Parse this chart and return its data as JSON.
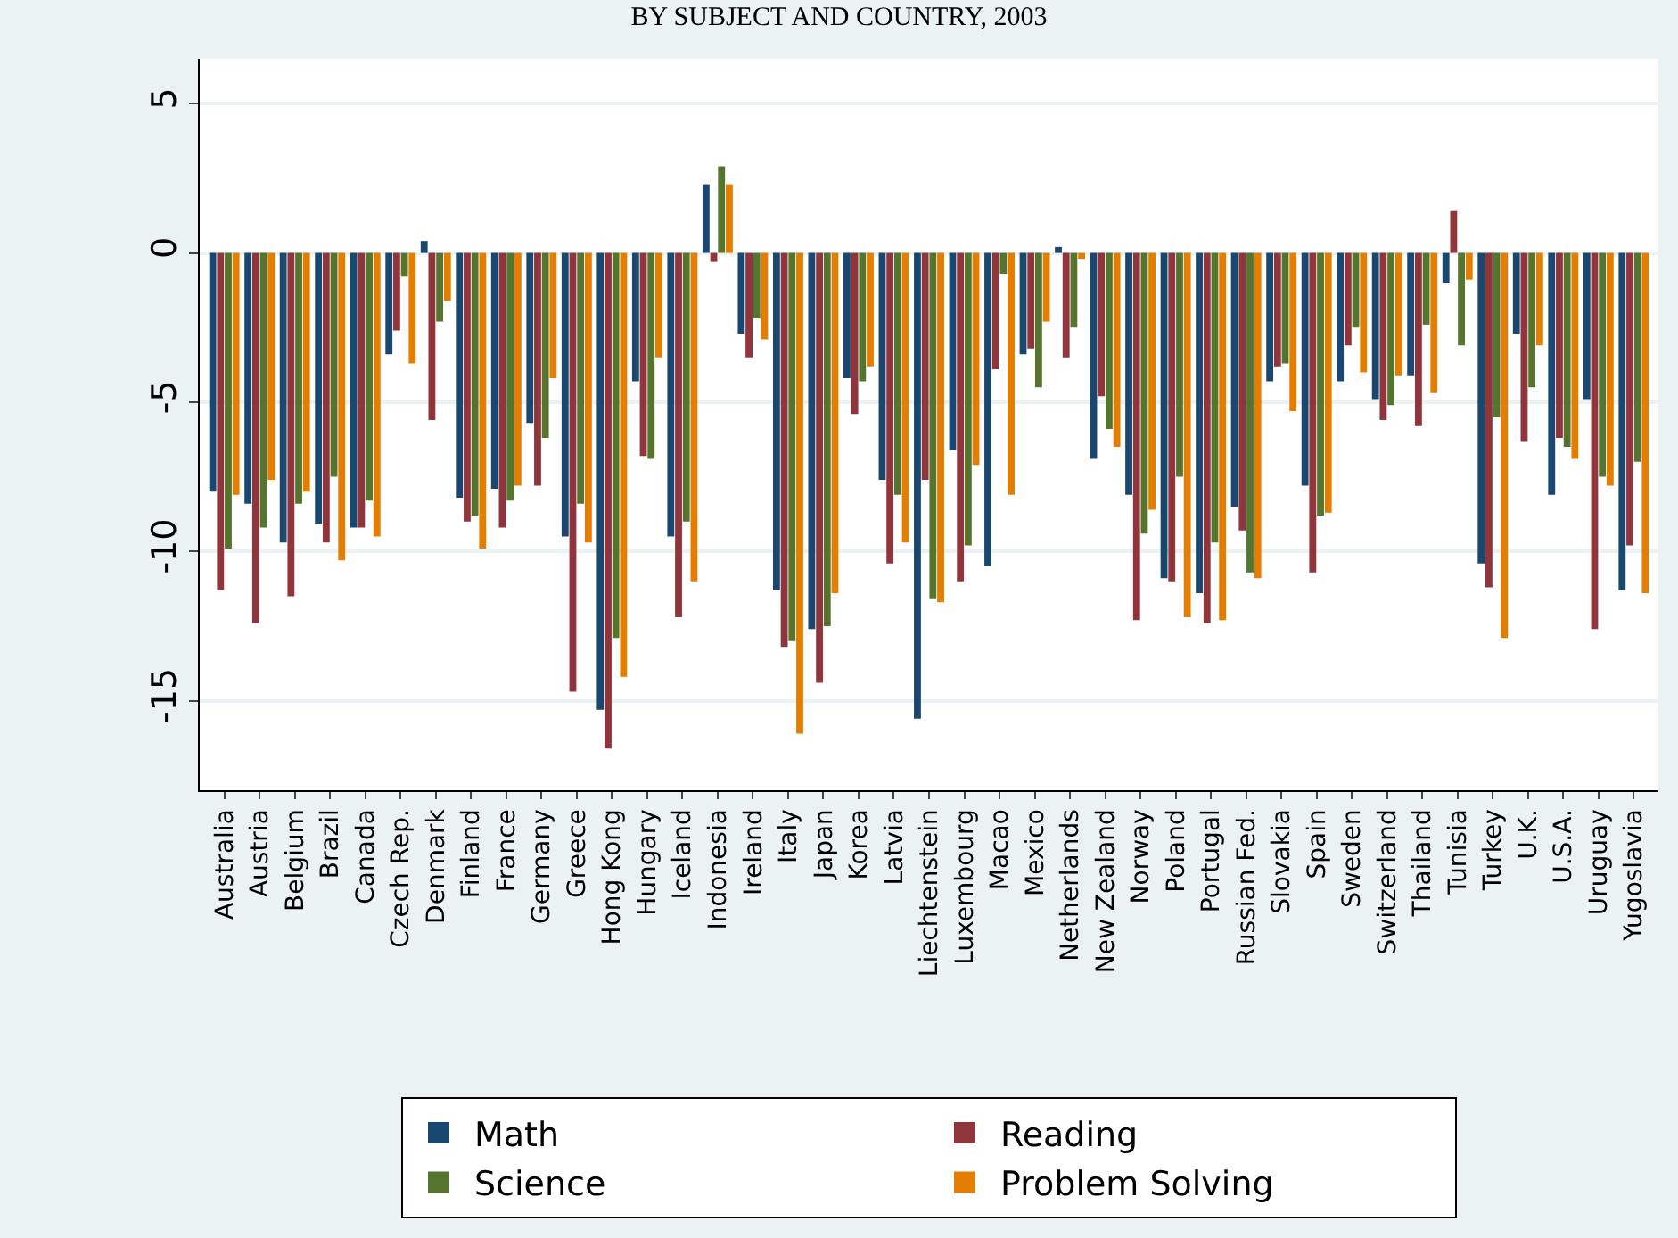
{
  "chart_data": {
    "type": "bar",
    "title": "BY SUBJECT AND COUNTRY, 2003",
    "categories": [
      "Australia",
      "Austria",
      "Belgium",
      "Brazil",
      "Canada",
      "Czech Rep.",
      "Denmark",
      "Finland",
      "France",
      "Germany",
      "Greece",
      "Hong Kong",
      "Hungary",
      "Iceland",
      "Indonesia",
      "Ireland",
      "Italy",
      "Japan",
      "Korea",
      "Latvia",
      "Liechtenstein",
      "Luxembourg",
      "Macao",
      "Mexico",
      "Netherlands",
      "New Zealand",
      "Norway",
      "Poland",
      "Portugal",
      "Russian Fed.",
      "Slovakia",
      "Spain",
      "Sweden",
      "Switzerland",
      "Thailand",
      "Tunisia",
      "Turkey",
      "U.K.",
      "U.S.A.",
      "Uruguay",
      "Yugoslavia"
    ],
    "series": [
      {
        "name": "Math",
        "color": "#1a476f",
        "values": [
          -8.0,
          -8.4,
          -9.7,
          -9.1,
          -9.2,
          -3.4,
          0.4,
          -8.2,
          -7.9,
          -5.7,
          -9.5,
          -15.3,
          -4.3,
          -9.5,
          2.3,
          -2.7,
          -11.3,
          -12.6,
          -4.2,
          -7.6,
          -15.6,
          -6.6,
          -10.5,
          -3.4,
          0.2,
          -6.9,
          -8.1,
          -10.9,
          -11.4,
          -8.5,
          -4.3,
          -7.8,
          -4.3,
          -4.9,
          -4.1,
          -1.0,
          -10.4,
          -2.7,
          -8.1,
          -4.9,
          -11.3
        ]
      },
      {
        "name": "Reading",
        "color": "#90353b",
        "values": [
          -11.3,
          -12.4,
          -11.5,
          -9.7,
          -9.2,
          -2.6,
          -5.6,
          -9.0,
          -9.2,
          -7.8,
          -14.7,
          -16.6,
          -6.8,
          -12.2,
          -0.3,
          -3.5,
          -13.2,
          -14.4,
          -5.4,
          -10.4,
          -7.6,
          -11.0,
          -3.9,
          -3.2,
          -3.5,
          -4.8,
          -12.3,
          -11.0,
          -12.4,
          -9.3,
          -3.8,
          -10.7,
          -3.1,
          -5.6,
          -5.8,
          1.4,
          -11.2,
          -6.3,
          -6.2,
          -12.6,
          -9.8
        ]
      },
      {
        "name": "Science",
        "color": "#55752f",
        "values": [
          -9.9,
          -9.2,
          -8.4,
          -7.5,
          -8.3,
          -0.8,
          -2.3,
          -8.8,
          -8.3,
          -6.2,
          -8.4,
          -12.9,
          -6.9,
          -9.0,
          2.9,
          -2.2,
          -13.0,
          -12.5,
          -4.3,
          -8.1,
          -11.6,
          -9.8,
          -0.7,
          -4.5,
          -2.5,
          -5.9,
          -9.4,
          -7.5,
          -9.7,
          -10.7,
          -3.7,
          -8.8,
          -2.5,
          -5.1,
          -2.4,
          -3.1,
          -5.5,
          -4.5,
          -6.5,
          -7.5,
          -7.0
        ]
      },
      {
        "name": "Problem Solving",
        "color": "#e37e00",
        "values": [
          -8.1,
          -7.6,
          -8.0,
          -10.3,
          -9.5,
          -3.7,
          -1.6,
          -9.9,
          -7.8,
          -4.2,
          -9.7,
          -14.2,
          -3.5,
          -11.0,
          2.3,
          -2.9,
          -16.1,
          -11.4,
          -3.8,
          -9.7,
          -11.7,
          -7.1,
          -8.1,
          -2.3,
          -0.2,
          -6.5,
          -8.6,
          -12.2,
          -12.3,
          -10.9,
          -5.3,
          -8.7,
          -4.0,
          -4.1,
          -4.7,
          -0.9,
          -12.9,
          -3.1,
          -6.9,
          -7.8,
          -11.4
        ]
      }
    ],
    "ylim": [
      -18,
      6.5
    ],
    "yticks": [
      -15,
      -10,
      -5,
      0,
      5
    ],
    "grid": "y",
    "legend": "bottom"
  }
}
